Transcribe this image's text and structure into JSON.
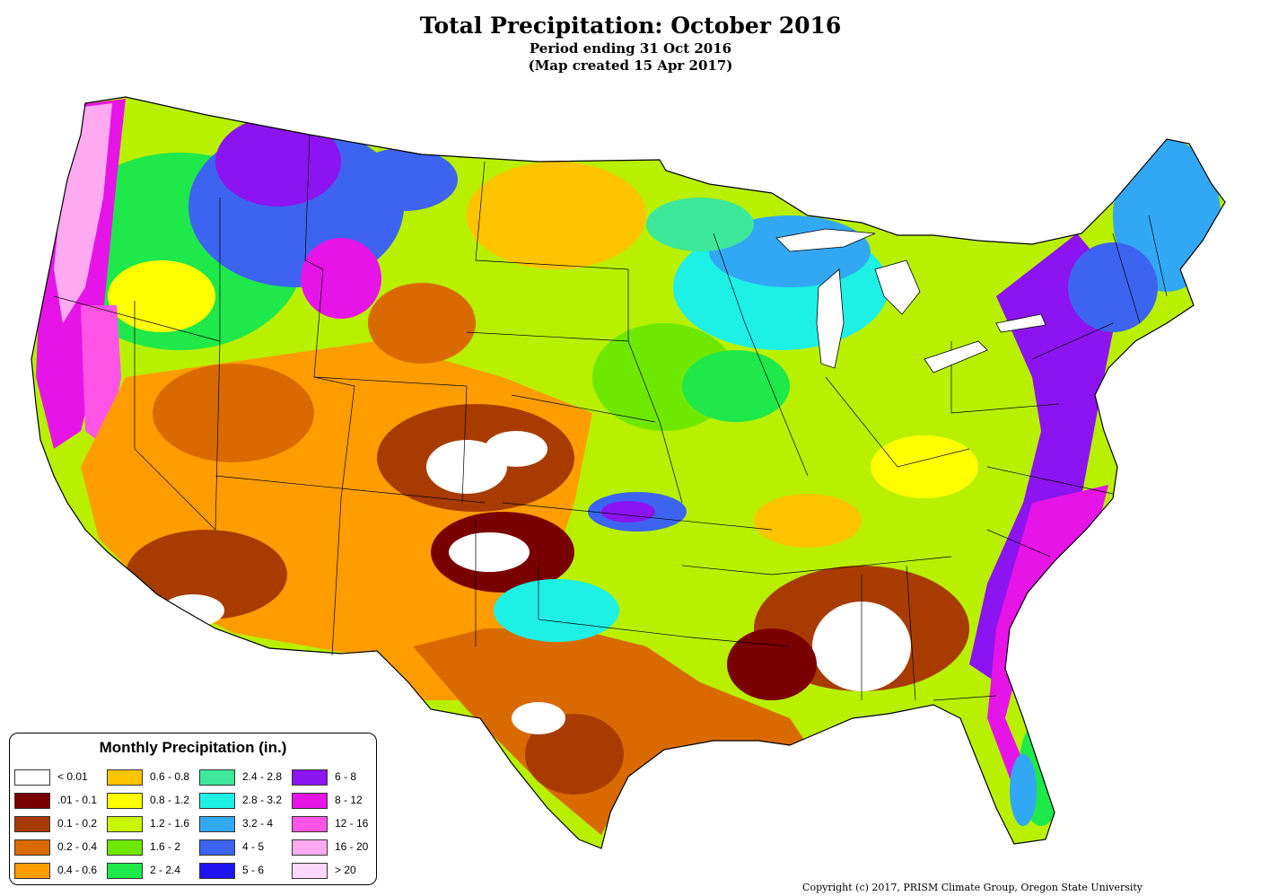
{
  "map": {
    "title": "Total Precipitation: October 2016",
    "subtitle_period": "Period ending 31 Oct 2016",
    "subtitle_created": "(Map created 15 Apr 2017)",
    "copyright": "Copyright (c) 2017, PRISM Climate Group, Oregon State University"
  },
  "legend": {
    "title": "Monthly Precipitation (in.)",
    "items": [
      {
        "label": "< 0.01",
        "color": "#ffffff"
      },
      {
        "label": ".01 - 0.1",
        "color": "#7a0000"
      },
      {
        "label": "0.1 - 0.2",
        "color": "#a83c00"
      },
      {
        "label": "0.2 - 0.4",
        "color": "#d96a00"
      },
      {
        "label": "0.4 - 0.6",
        "color": "#ff9d00"
      },
      {
        "label": "0.6 - 0.8",
        "color": "#ffc400"
      },
      {
        "label": "0.8 - 1.2",
        "color": "#ffff00"
      },
      {
        "label": "1.2 - 1.6",
        "color": "#c8f500"
      },
      {
        "label": "1.6 - 2",
        "color": "#6fe800"
      },
      {
        "label": "2 - 2.4",
        "color": "#1ee84a"
      },
      {
        "label": "2.4 - 2.8",
        "color": "#3de89a"
      },
      {
        "label": "2.8 - 3.2",
        "color": "#1ef0e6"
      },
      {
        "label": "3.2 - 4",
        "color": "#32a8f5"
      },
      {
        "label": "4 - 5",
        "color": "#3c64f0"
      },
      {
        "label": "5 - 6",
        "color": "#1e14f0"
      },
      {
        "label": "6 - 8",
        "color": "#8c14f0"
      },
      {
        "label": "8 - 12",
        "color": "#e614e6"
      },
      {
        "label": "12 - 16",
        "color": "#ff55e6"
      },
      {
        "label": "16 - 20",
        "color": "#ffaaf0"
      },
      {
        "label": "> 20",
        "color": "#ffd7ff"
      }
    ]
  }
}
